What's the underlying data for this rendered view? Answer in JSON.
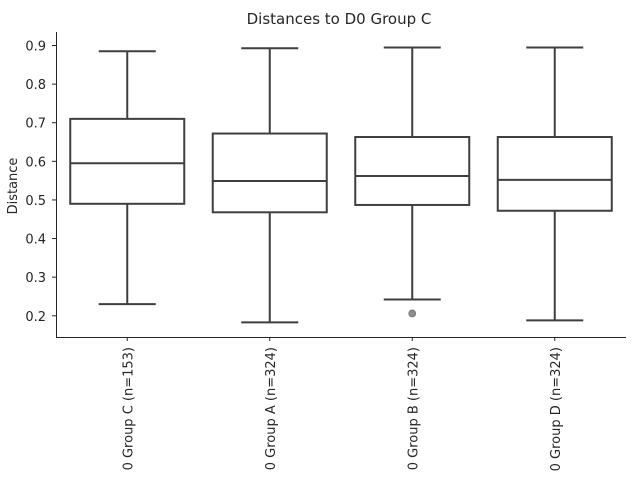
{
  "chart_data": {
    "type": "box",
    "title": "Distances to D0 Group C",
    "xlabel": "",
    "ylabel": "Distance",
    "ylim": [
      0.145,
      0.935
    ],
    "yticks": [
      0.2,
      0.3,
      0.4,
      0.5,
      0.6,
      0.7,
      0.8,
      0.9
    ],
    "ytick_labels": [
      "0.2",
      "0.3",
      "0.4",
      "0.5",
      "0.6",
      "0.7",
      "0.8",
      "0.9"
    ],
    "grid": false,
    "categories": [
      "0 Group C (n=153)",
      "0 Group A (n=324)",
      "0 Group B (n=324)",
      "0 Group D (n=324)"
    ],
    "boxes": [
      {
        "whisker_low": 0.23,
        "q1": 0.49,
        "median": 0.595,
        "q3": 0.71,
        "whisker_high": 0.885,
        "outliers": []
      },
      {
        "whisker_low": 0.183,
        "q1": 0.468,
        "median": 0.549,
        "q3": 0.672,
        "whisker_high": 0.893,
        "outliers": []
      },
      {
        "whisker_low": 0.242,
        "q1": 0.487,
        "median": 0.562,
        "q3": 0.663,
        "whisker_high": 0.895,
        "outliers": [
          0.206
        ]
      },
      {
        "whisker_low": 0.188,
        "q1": 0.472,
        "median": 0.552,
        "q3": 0.663,
        "whisker_high": 0.895,
        "outliers": []
      }
    ],
    "colors": {
      "box_edge": "#3f3f3f",
      "box_fill": "#ffffff",
      "outlier": "#8c8c8c",
      "axis": "#262626",
      "text": "#262626"
    }
  }
}
